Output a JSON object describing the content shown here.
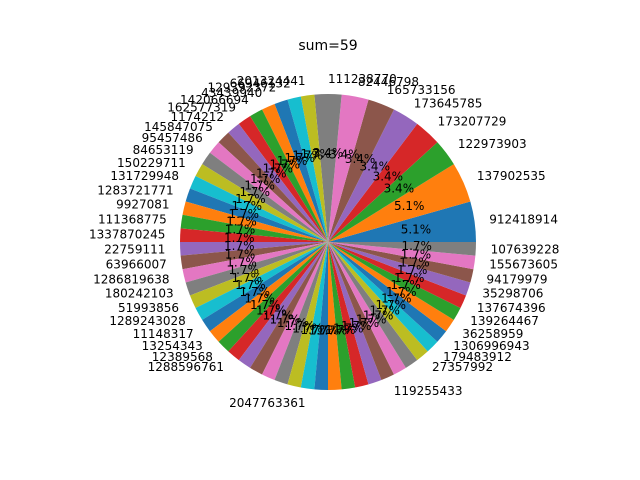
{
  "chart_data": {
    "type": "pie",
    "title": "sum=59",
    "start_angle_deg": 0,
    "direction": "counterclockwise",
    "colors": [
      "#1f77b4",
      "#ff7f0e",
      "#2ca02c",
      "#d62728",
      "#9467bd",
      "#8c564b",
      "#e377c2",
      "#7f7f7f",
      "#bcbd22",
      "#17becf"
    ],
    "labels": [
      "912418914",
      "137902535",
      "122973903",
      "173207729",
      "173645785",
      "165733156",
      "82446798",
      "111238770",
      "201324441",
      "66946132",
      "129392372",
      "43439940",
      "142066694",
      "162577319",
      "1174212",
      "145847075",
      "95457486",
      "84653119",
      "150229711",
      "131729948",
      "1283721771",
      "9927081",
      "111368775",
      "1337870245",
      "22759111",
      "63966007",
      "1286819638",
      "180242103",
      "51993856",
      "1289243028",
      "11148317",
      "13254343",
      "12389568",
      "1288596761",
      "",
      "",
      "",
      "",
      "",
      "2047763361",
      "",
      "",
      "",
      "",
      "",
      "119255433",
      "",
      "",
      "27357992",
      "179483912",
      "1306996943",
      "36258959",
      "139264467",
      "137674396",
      "35298706",
      "94179979",
      "155673605",
      "107639228"
    ],
    "values": [
      3,
      3,
      2,
      2,
      2,
      2,
      2,
      2,
      1,
      1,
      1,
      1,
      1,
      1,
      1,
      1,
      1,
      1,
      1,
      1,
      1,
      1,
      1,
      1,
      1,
      1,
      1,
      1,
      1,
      1,
      1,
      1,
      1,
      1,
      1,
      1,
      1,
      1,
      1,
      1,
      1,
      1,
      1,
      1,
      1,
      1,
      1,
      1,
      1,
      1,
      1,
      1,
      1,
      1,
      1,
      1,
      1,
      1
    ],
    "percent_labels": [
      "5.1%",
      "5.1%",
      "3.4%",
      "3.4%",
      "3.4%",
      "3.4%",
      "3.4%",
      "3.4%",
      "1.7%",
      "1.7%",
      "1.7%",
      "1.7%",
      "1.7%",
      "1.7%",
      "1.7%",
      "1.7%",
      "1.7%",
      "1.7%",
      "1.7%",
      "1.7%",
      "1.7%",
      "1.7%",
      "1.7%",
      "1.7%",
      "1.7%",
      "1.7%",
      "1.7%",
      "1.7%",
      "1.7%",
      "1.7%",
      "1.7%",
      "1.7%",
      "1.7%",
      "1.7%",
      "1.7%",
      "1.7%",
      "1.7%",
      "1.7%",
      "1.7%",
      "1.7%",
      "1.7%",
      "1.7%",
      "1.7%",
      "1.7%",
      "1.7%",
      "1.7%",
      "1.7%",
      "1.7%",
      "1.7%",
      "1.7%",
      "1.7%",
      "1.7%",
      "1.7%",
      "1.7%",
      "1.7%",
      "1.7%",
      "1.7%",
      "1.7%"
    ]
  }
}
